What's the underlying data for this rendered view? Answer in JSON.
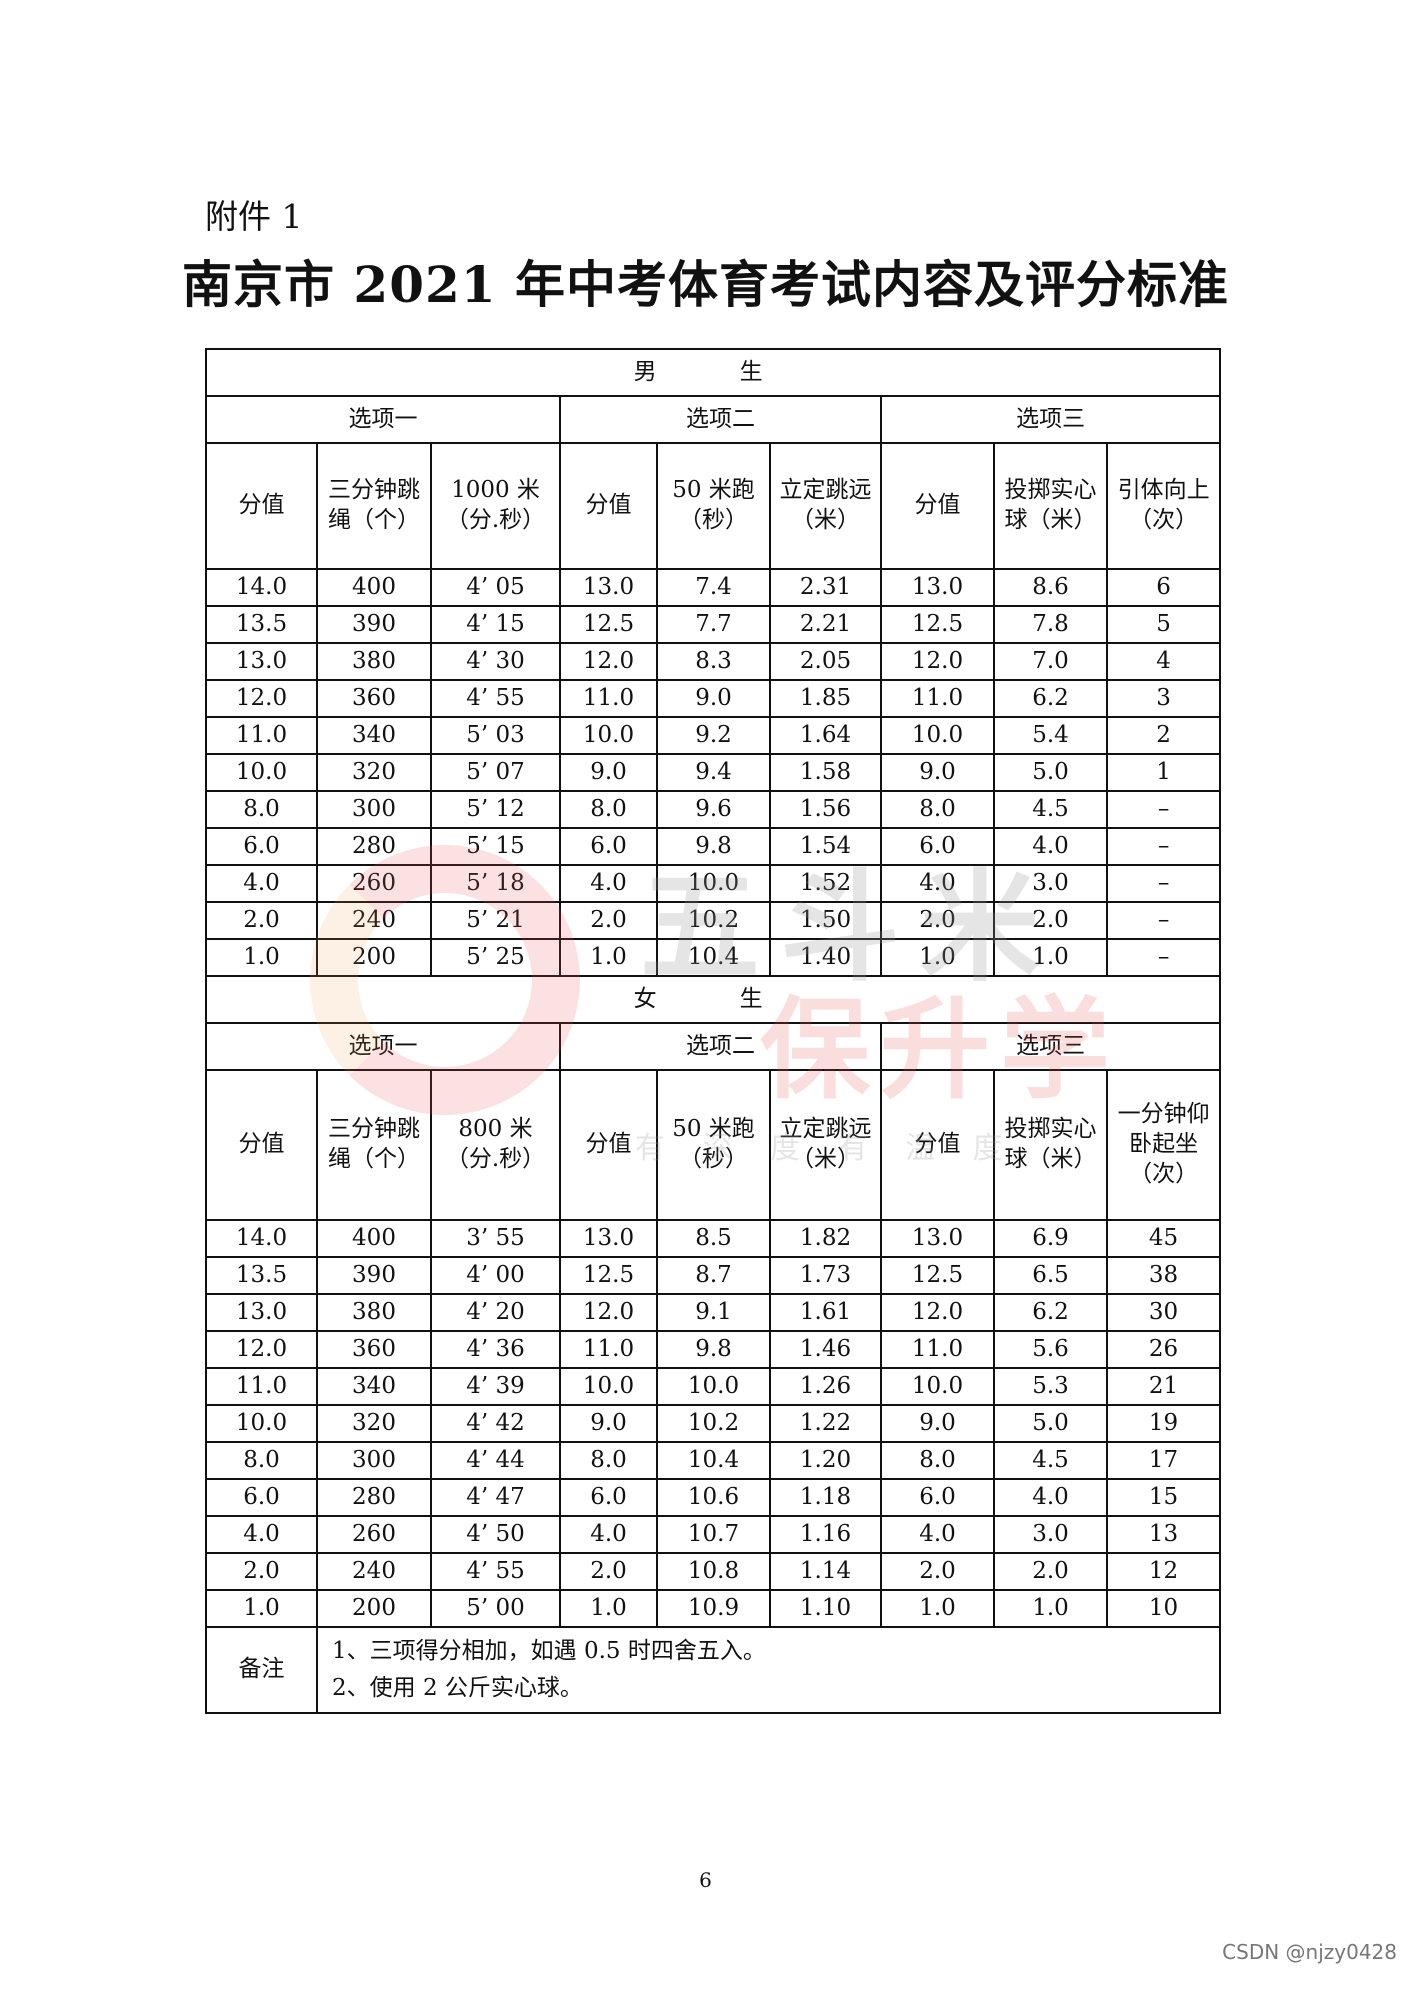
{
  "attachment_label": "附件 1",
  "title": "南京市 2021 年中考体育考试内容及评分标准",
  "watermark": {
    "logo_line1": "五斗米",
    "logo_line2": "保升学",
    "slogan": "有 深 度 有 温 度",
    "colors": {
      "red": "#e85a5a",
      "gray": "#9a9a9a"
    }
  },
  "male": {
    "section": "男　生",
    "options": [
      "选项一",
      "选项二",
      "选项三"
    ],
    "headers": [
      "分值",
      "三分钟跳绳（个）",
      "1000 米（分.秒）",
      "分值",
      "50 米跑（秒）",
      "立定跳远（米）",
      "分值",
      "投掷实心球（米）",
      "引体向上（次）"
    ],
    "rows": [
      [
        "14.0",
        "400",
        "4’ 05",
        "13.0",
        "7.4",
        "2.31",
        "13.0",
        "8.6",
        "6"
      ],
      [
        "13.5",
        "390",
        "4’ 15",
        "12.5",
        "7.7",
        "2.21",
        "12.5",
        "7.8",
        "5"
      ],
      [
        "13.0",
        "380",
        "4’ 30",
        "12.0",
        "8.3",
        "2.05",
        "12.0",
        "7.0",
        "4"
      ],
      [
        "12.0",
        "360",
        "4’ 55",
        "11.0",
        "9.0",
        "1.85",
        "11.0",
        "6.2",
        "3"
      ],
      [
        "11.0",
        "340",
        "5’ 03",
        "10.0",
        "9.2",
        "1.64",
        "10.0",
        "5.4",
        "2"
      ],
      [
        "10.0",
        "320",
        "5’ 07",
        "9.0",
        "9.4",
        "1.58",
        "9.0",
        "5.0",
        "1"
      ],
      [
        "8.0",
        "300",
        "5’ 12",
        "8.0",
        "9.6",
        "1.56",
        "8.0",
        "4.5",
        "–"
      ],
      [
        "6.0",
        "280",
        "5’ 15",
        "6.0",
        "9.8",
        "1.54",
        "6.0",
        "4.0",
        "–"
      ],
      [
        "4.0",
        "260",
        "5’ 18",
        "4.0",
        "10.0",
        "1.52",
        "4.0",
        "3.0",
        "–"
      ],
      [
        "2.0",
        "240",
        "5’ 21",
        "2.0",
        "10.2",
        "1.50",
        "2.0",
        "2.0",
        "–"
      ],
      [
        "1.0",
        "200",
        "5’ 25",
        "1.0",
        "10.4",
        "1.40",
        "1.0",
        "1.0",
        "–"
      ]
    ]
  },
  "female": {
    "section": "女　生",
    "options": [
      "选项一",
      "选项二",
      "选项三"
    ],
    "headers": [
      "分值",
      "三分钟跳绳（个）",
      "800 米（分.秒）",
      "分值",
      "50 米跑（秒）",
      "立定跳远（米）",
      "分值",
      "投掷实心球（米）",
      "一分钟仰卧起坐（次）"
    ],
    "rows": [
      [
        "14.0",
        "400",
        "3’ 55",
        "13.0",
        "8.5",
        "1.82",
        "13.0",
        "6.9",
        "45"
      ],
      [
        "13.5",
        "390",
        "4’ 00",
        "12.5",
        "8.7",
        "1.73",
        "12.5",
        "6.5",
        "38"
      ],
      [
        "13.0",
        "380",
        "4’ 20",
        "12.0",
        "9.1",
        "1.61",
        "12.0",
        "6.2",
        "30"
      ],
      [
        "12.0",
        "360",
        "4’ 36",
        "11.0",
        "9.8",
        "1.46",
        "11.0",
        "5.6",
        "26"
      ],
      [
        "11.0",
        "340",
        "4’ 39",
        "10.0",
        "10.0",
        "1.26",
        "10.0",
        "5.3",
        "21"
      ],
      [
        "10.0",
        "320",
        "4’ 42",
        "9.0",
        "10.2",
        "1.22",
        "9.0",
        "5.0",
        "19"
      ],
      [
        "8.0",
        "300",
        "4’ 44",
        "8.0",
        "10.4",
        "1.20",
        "8.0",
        "4.5",
        "17"
      ],
      [
        "6.0",
        "280",
        "4’ 47",
        "6.0",
        "10.6",
        "1.18",
        "6.0",
        "4.0",
        "15"
      ],
      [
        "4.0",
        "260",
        "4’ 50",
        "4.0",
        "10.7",
        "1.16",
        "4.0",
        "3.0",
        "13"
      ],
      [
        "2.0",
        "240",
        "4’ 55",
        "2.0",
        "10.8",
        "1.14",
        "2.0",
        "2.0",
        "12"
      ],
      [
        "1.0",
        "200",
        "5’ 00",
        "1.0",
        "10.9",
        "1.10",
        "1.0",
        "1.0",
        "10"
      ]
    ]
  },
  "notes": {
    "label": "备注",
    "lines": [
      "1、三项得分相加，如遇 0.5 时四舍五入。",
      "2、使用 2 公斤实心球。"
    ]
  },
  "page_number": "6",
  "csdn_watermark": "CSDN @njzy0428"
}
